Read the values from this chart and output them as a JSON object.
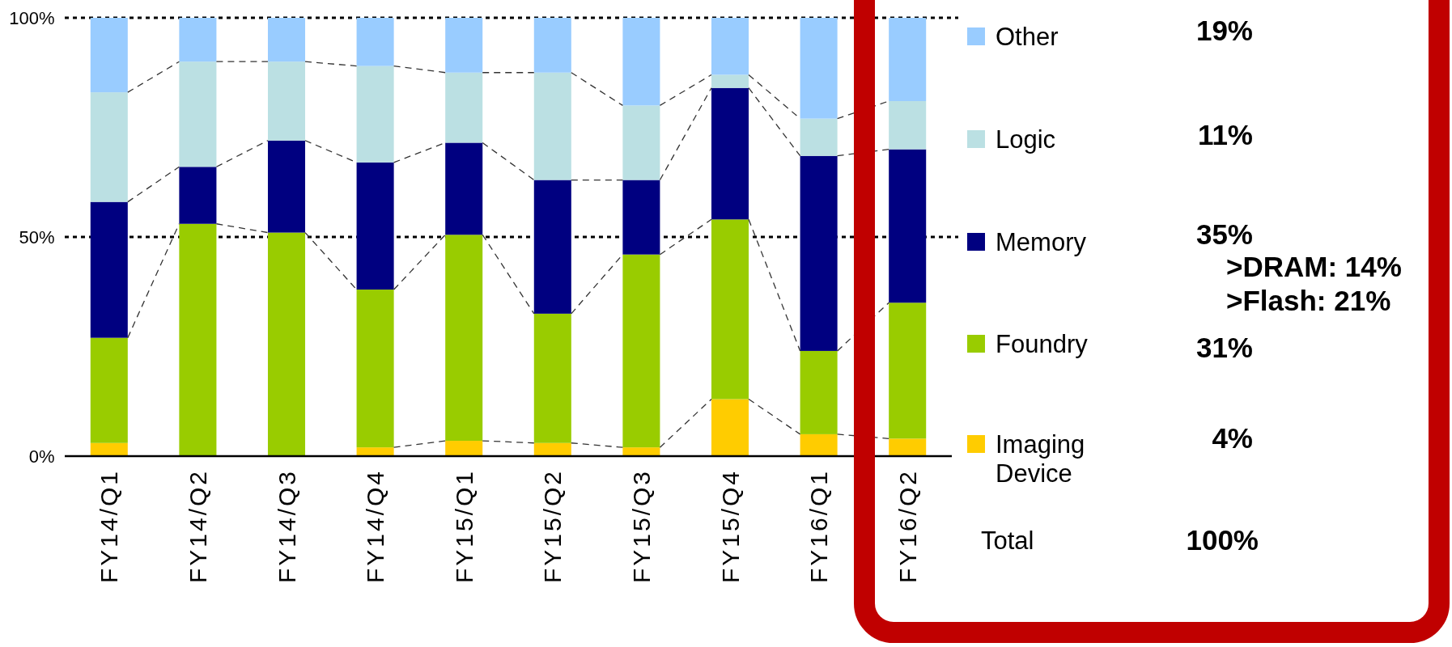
{
  "chart_data": {
    "type": "bar",
    "stacked": true,
    "categories": [
      "FY14/Q1",
      "FY14/Q2",
      "FY14/Q3",
      "FY14/Q4",
      "FY15/Q1",
      "FY15/Q2",
      "FY15/Q3",
      "FY15/Q4",
      "FY16/Q1",
      "FY16/Q2"
    ],
    "series": [
      {
        "name": "Imaging Device",
        "color": "#ffcc00",
        "values": [
          3,
          0,
          0,
          2,
          3.5,
          3,
          2,
          13,
          5,
          4
        ]
      },
      {
        "name": "Foundry",
        "color": "#99cc00",
        "values": [
          24,
          53,
          51,
          36,
          47,
          29.5,
          44,
          41,
          19,
          31
        ]
      },
      {
        "name": "Memory",
        "color": "#000080",
        "values": [
          31,
          13,
          21,
          29,
          21,
          30.5,
          17,
          30,
          44.5,
          35
        ]
      },
      {
        "name": "Logic",
        "color": "#bbe0e3",
        "values": [
          25,
          24,
          18,
          22,
          16,
          24.5,
          17,
          3,
          8.5,
          11
        ]
      },
      {
        "name": "Other",
        "color": "#99ccff",
        "values": [
          17,
          10,
          10,
          11,
          12.5,
          12.5,
          20,
          13,
          23,
          19
        ]
      }
    ],
    "ylim": [
      0,
      100
    ],
    "yticks": [
      {
        "value": 0,
        "label": "0%"
      },
      {
        "value": 50,
        "label": "50%"
      },
      {
        "value": 100,
        "label": "100%"
      }
    ],
    "grid": "y",
    "legend": "right",
    "line_style": "dashed",
    "annotations": [
      "19%",
      "11%",
      "35%",
      "31%",
      "4%",
      ">DRAM: 14%",
      ">Flash:   21%",
      "Total",
      "100%"
    ]
  }
}
